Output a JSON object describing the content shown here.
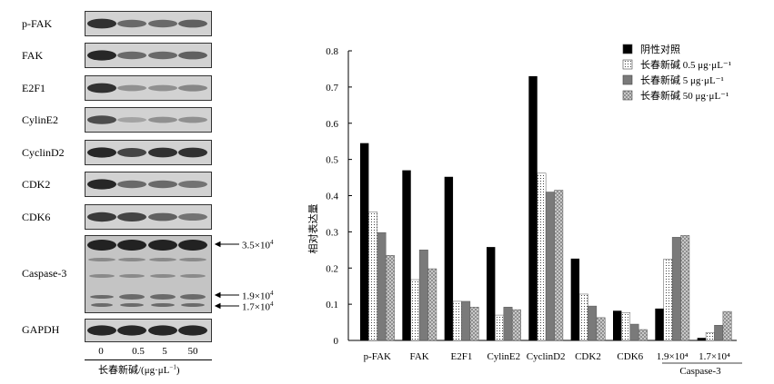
{
  "blot": {
    "rows": [
      {
        "label": "p-FAK"
      },
      {
        "label": "FAK"
      },
      {
        "label": "E2F1"
      },
      {
        "label": "CylinE2"
      },
      {
        "label": "CyclinD2"
      },
      {
        "label": "CDK2"
      },
      {
        "label": "CDK6"
      },
      {
        "label": "Caspase-3"
      },
      {
        "label": "GAPDH"
      }
    ],
    "band_intensity": {
      "p-FAK": [
        0.85,
        0.55,
        0.55,
        0.6
      ],
      "FAK": [
        0.9,
        0.55,
        0.55,
        0.6
      ],
      "E2F1": [
        0.85,
        0.35,
        0.35,
        0.4
      ],
      "CylinE2": [
        0.7,
        0.25,
        0.35,
        0.35
      ],
      "CyclinD2": [
        0.9,
        0.75,
        0.85,
        0.85
      ],
      "CDK2": [
        0.9,
        0.55,
        0.55,
        0.5
      ],
      "CDK6": [
        0.8,
        0.75,
        0.6,
        0.5
      ],
      "GAPDH": [
        0.9,
        0.9,
        0.9,
        0.9
      ]
    },
    "markers": [
      {
        "base": "3.5×10",
        "exp": "4"
      },
      {
        "base": "1.9×10",
        "exp": "4"
      },
      {
        "base": "1.7×10",
        "exp": "4"
      }
    ],
    "lanes": [
      "0",
      "0.5",
      "5",
      "50"
    ],
    "xcaption": "长春新碱/(μg·μL",
    "xcaption_exp": "−1",
    "xcaption_end": ")"
  },
  "chart_data": {
    "type": "bar",
    "ylabel": "相对表达量",
    "ylim": [
      0,
      0.8
    ],
    "yticks": [
      "0",
      "0.1",
      "0.2",
      "0.3",
      "0.4",
      "0.5",
      "0.6",
      "0.7",
      "0.8"
    ],
    "categories": [
      "p-FAK",
      "FAK",
      "E2F1",
      "CylinE2",
      "CyclinD2",
      "CDK2",
      "CDK6",
      "1.9×10⁴",
      "1.7×10⁴"
    ],
    "group_caption": "Caspase-3",
    "series": [
      {
        "name": "阴性对照",
        "values": [
          0.545,
          0.47,
          0.452,
          0.258,
          0.73,
          0.226,
          0.082,
          0.088,
          0.007
        ],
        "color": "#000000",
        "pattern": "solid"
      },
      {
        "name": "长春新碱 0.5 μg·μL⁻¹",
        "values": [
          0.355,
          0.168,
          0.108,
          0.07,
          0.462,
          0.128,
          0.077,
          0.225,
          0.022
        ],
        "color": "#ffffff",
        "pattern": "dots"
      },
      {
        "name": "长春新碱 5 μg·μL⁻¹",
        "values": [
          0.298,
          0.25,
          0.108,
          0.092,
          0.41,
          0.095,
          0.045,
          0.285,
          0.042
        ],
        "color": "#7a7a7a",
        "pattern": "solid"
      },
      {
        "name": "长春新碱 50 μg·μL⁻¹",
        "values": [
          0.235,
          0.198,
          0.092,
          0.085,
          0.415,
          0.063,
          0.03,
          0.29,
          0.08
        ],
        "color": "#b8b8b8",
        "pattern": "checker"
      }
    ]
  }
}
